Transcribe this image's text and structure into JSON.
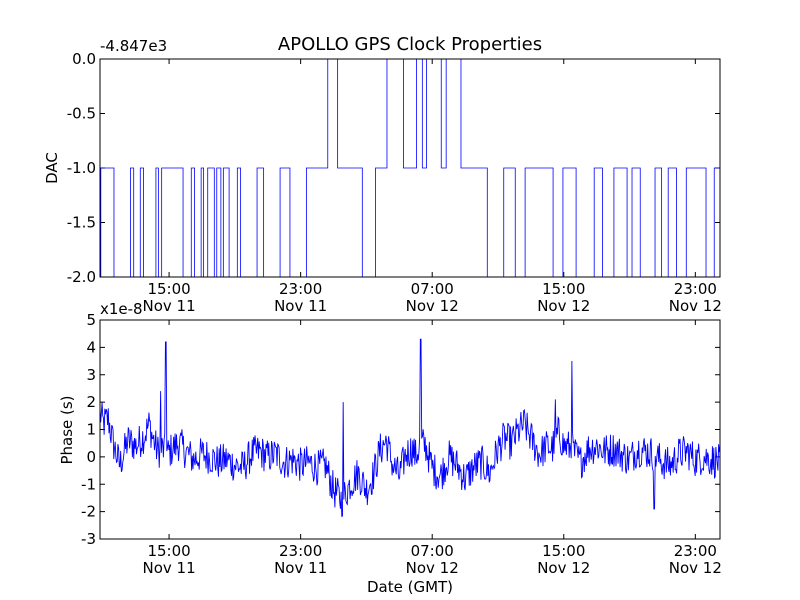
{
  "chart_data": [
    {
      "type": "line",
      "title": "APOLLO GPS Clock Properties",
      "ylabel": "DAC",
      "xlabel": "",
      "offset_text": "-4.847e3",
      "ylim": [
        -2.0,
        0.0
      ],
      "yticks": [
        "-2.0",
        "-1.5",
        "-1.0",
        "-0.5",
        "0.0"
      ],
      "ytick_values": [
        -2.0,
        -1.5,
        -1.0,
        -0.5,
        0.0
      ],
      "xticks": [
        {
          "time": "15:00",
          "date": "Nov 11"
        },
        {
          "time": "23:00",
          "date": "Nov 11"
        },
        {
          "time": "07:00",
          "date": "Nov 12"
        },
        {
          "time": "15:00",
          "date": "Nov 12"
        },
        {
          "time": "23:00",
          "date": "Nov 12"
        }
      ],
      "xtick_hours": [
        15,
        23,
        31,
        39,
        47
      ],
      "xlim_hours": [
        10.8,
        48.5
      ],
      "color": "#0000ff",
      "series": [
        {
          "x_hours": [
            10.8,
            10.85,
            10.9,
            10.95,
            11.6,
            11.65,
            12.6,
            12.65,
            12.8,
            12.85,
            13.2,
            13.25,
            13.4,
            13.45,
            14.15,
            14.2,
            14.3,
            14.35,
            14.5,
            14.55,
            15.8,
            15.85,
            16.3,
            16.35,
            16.5,
            16.55,
            16.9,
            16.95,
            17.05,
            17.1,
            17.3,
            17.35,
            17.7,
            17.75,
            17.85,
            17.9,
            18.1,
            18.15,
            18.25,
            18.3,
            18.6,
            18.65,
            19.1,
            19.15,
            19.3,
            19.35,
            20.3,
            20.35,
            20.7,
            20.75,
            21.7,
            21.75,
            22.3,
            22.35,
            23.3,
            23.35,
            24.6,
            24.65,
            25.2,
            25.25,
            26.7,
            26.75,
            27.5,
            27.55,
            28.2,
            28.25,
            29.2,
            29.25,
            30.0,
            30.05,
            30.35,
            30.4,
            30.6,
            30.65,
            31.5,
            31.55,
            31.8,
            31.85,
            32.7,
            32.75,
            34.3,
            34.35,
            35.3,
            35.35,
            36.0,
            36.05,
            36.6,
            36.65,
            38.3,
            38.35,
            38.9,
            38.95,
            39.7,
            39.75,
            40.8,
            40.85,
            41.3,
            41.35,
            42.0,
            42.05,
            42.8,
            42.85,
            43.1,
            43.15,
            43.6,
            43.65,
            44.5,
            44.55,
            44.9,
            44.95,
            45.3,
            45.35,
            45.8,
            45.85,
            46.4,
            46.45,
            47.6,
            47.65,
            48.1,
            48.15,
            48.5
          ],
          "y": [
            -2.0,
            -1.0,
            -1.0,
            -1.0,
            -1.0,
            -2.0,
            -2.0,
            -1.0,
            -1.0,
            -2.0,
            -2.0,
            -1.0,
            -1.0,
            -2.0,
            -2.0,
            -1.0,
            -1.0,
            -2.0,
            -2.0,
            -1.0,
            -1.0,
            -2.0,
            -2.0,
            -1.0,
            -1.0,
            -2.0,
            -2.0,
            -1.0,
            -1.0,
            -2.0,
            -2.0,
            -1.0,
            -1.0,
            -2.0,
            -2.0,
            -1.0,
            -1.0,
            -2.0,
            -2.0,
            -1.0,
            -1.0,
            -2.0,
            -2.0,
            -1.0,
            -1.0,
            -2.0,
            -2.0,
            -1.0,
            -1.0,
            -2.0,
            -2.0,
            -1.0,
            -1.0,
            -2.0,
            -2.0,
            -1.0,
            -1.0,
            0.0,
            0.0,
            -1.0,
            -1.0,
            -2.0,
            -2.0,
            -1.0,
            -1.0,
            0.0,
            0.0,
            -1.0,
            -1.0,
            0.0,
            0.0,
            -1.0,
            -1.0,
            0.0,
            0.0,
            -1.0,
            -1.0,
            0.0,
            0.0,
            -1.0,
            -1.0,
            -2.0,
            -2.0,
            -1.0,
            -1.0,
            -2.0,
            -2.0,
            -1.0,
            -1.0,
            -2.0,
            -2.0,
            -1.0,
            -1.0,
            -2.0,
            -2.0,
            -1.0,
            -1.0,
            -2.0,
            -2.0,
            -1.0,
            -1.0,
            -2.0,
            -2.0,
            -1.0,
            -1.0,
            -2.0,
            -2.0,
            -1.0,
            -1.0,
            -2.0,
            -2.0,
            -1.0,
            -1.0,
            -2.0,
            -2.0,
            -1.0,
            -1.0,
            -2.0,
            -2.0,
            -1.0,
            -1.0
          ]
        }
      ]
    },
    {
      "type": "line",
      "title": "",
      "ylabel": "Phase (s)",
      "xlabel": "Date (GMT)",
      "offset_text": "x1e-8",
      "ylim": [
        -3,
        5
      ],
      "yticks": [
        "-3",
        "-2",
        "-1",
        "0",
        "1",
        "2",
        "3",
        "4",
        "5"
      ],
      "ytick_values": [
        -3,
        -2,
        -1,
        0,
        1,
        2,
        3,
        4,
        5
      ],
      "xticks": [
        {
          "time": "15:00",
          "date": "Nov 11"
        },
        {
          "time": "23:00",
          "date": "Nov 11"
        },
        {
          "time": "07:00",
          "date": "Nov 12"
        },
        {
          "time": "15:00",
          "date": "Nov 12"
        },
        {
          "time": "23:00",
          "date": "Nov 12"
        }
      ],
      "xtick_hours": [
        15,
        23,
        31,
        39,
        47
      ],
      "xlim_hours": [
        10.8,
        48.5
      ],
      "color": "#0000ff",
      "series": [
        {
          "x_hours": [
            10.8,
            11.0,
            11.3,
            11.6,
            12.0,
            12.5,
            13.0,
            13.5,
            13.8,
            14.0,
            14.3,
            14.6,
            14.9,
            15.2,
            15.6,
            16.0,
            16.5,
            17.0,
            17.5,
            18.0,
            18.5,
            19.0,
            19.5,
            20.0,
            20.5,
            21.0,
            21.5,
            22.0,
            22.5,
            23.0,
            23.5,
            24.0,
            24.5,
            25.0,
            25.5,
            26.0,
            26.5,
            27.0,
            27.4,
            27.8,
            28.2,
            28.6,
            29.0,
            29.4,
            29.8,
            30.0,
            30.3,
            30.6,
            31.0,
            31.5,
            32.0,
            32.5,
            33.0,
            33.5,
            34.0,
            34.5,
            35.0,
            35.4,
            35.8,
            36.2,
            36.6,
            37.0,
            37.5,
            38.0,
            38.3,
            38.7,
            39.0,
            39.5,
            40.0,
            40.5,
            41.0,
            41.5,
            42.0,
            42.5,
            43.0,
            43.5,
            44.0,
            44.5,
            45.0,
            45.5,
            46.0,
            46.5,
            47.0,
            47.5,
            48.0,
            48.5
          ],
          "y": [
            1.6,
            1.2,
            1.4,
            0.5,
            -0.3,
            0.6,
            0.4,
            0.8,
            1.2,
            0.7,
            0.2,
            0.3,
            0.1,
            0.3,
            0.5,
            0.2,
            -0.1,
            0.1,
            0.0,
            -0.2,
            -0.1,
            -0.3,
            -0.4,
            0.1,
            0.2,
            0.0,
            0.1,
            -0.2,
            -0.1,
            -0.3,
            -0.2,
            -0.4,
            -0.3,
            -1.2,
            -1.6,
            -1.0,
            -0.6,
            -1.2,
            -0.7,
            0.2,
            0.6,
            -0.3,
            -0.7,
            0.1,
            0.3,
            0.0,
            0.5,
            0.4,
            -0.4,
            -0.7,
            0.0,
            -0.3,
            -0.8,
            -0.4,
            -0.2,
            -0.6,
            0.3,
            0.7,
            0.5,
            0.9,
            1.2,
            0.7,
            0.1,
            0.4,
            0.3,
            0.9,
            0.4,
            0.3,
            -0.2,
            0.3,
            0.4,
            0.2,
            0.3,
            0.1,
            -0.1,
            0.3,
            0.2,
            0.1,
            -0.2,
            -0.3,
            0.1,
            0.2,
            -0.1,
            0.0,
            -0.1,
            -0.2
          ],
          "spikes": [
            {
              "x": 14.8,
              "y": 4.2
            },
            {
              "x": 14.5,
              "y": 2.4
            },
            {
              "x": 25.6,
              "y": 2.0
            },
            {
              "x": 30.3,
              "y": 4.3
            },
            {
              "x": 38.5,
              "y": 2.1
            },
            {
              "x": 39.5,
              "y": 3.5
            },
            {
              "x": 44.5,
              "y": -1.9
            }
          ]
        }
      ]
    }
  ]
}
